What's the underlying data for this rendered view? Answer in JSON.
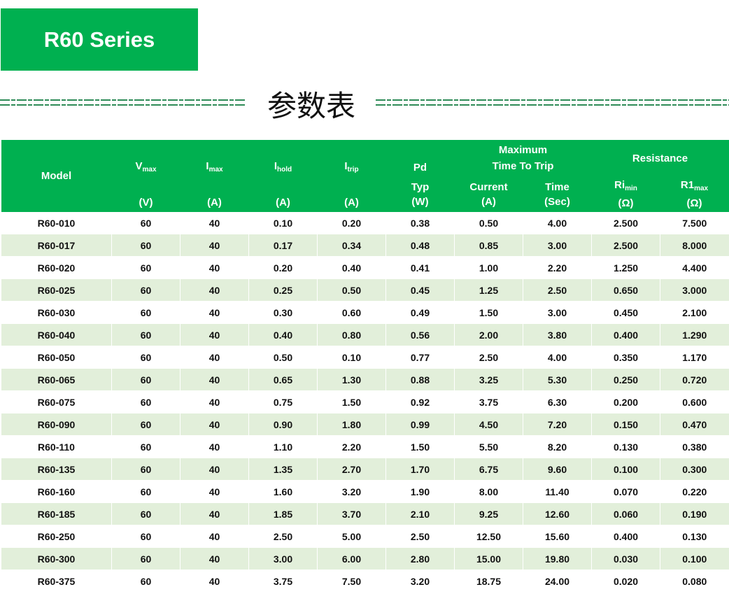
{
  "banner": {
    "title": "R60 Series"
  },
  "section_title": "参数表",
  "colors": {
    "accent": "#00b050",
    "alt_row": "#e2efda",
    "decor_line": "#2e8b57"
  },
  "table": {
    "headers": {
      "model": "Model",
      "vmax": {
        "main": "V",
        "sub": "max",
        "unit": "(V)"
      },
      "imax": {
        "main": "I",
        "sub": "max",
        "unit": "(A)"
      },
      "ihold": {
        "main": "I",
        "sub": "hold",
        "unit": "(A)"
      },
      "itrip": {
        "main": "I",
        "sub": "trip",
        "unit": "(A)"
      },
      "pd": {
        "main": "Pd",
        "typ": "Typ",
        "unit": "(W)"
      },
      "trip_group": {
        "line1": "Maximum",
        "line2": "Time To Trip"
      },
      "current": {
        "main": "Current",
        "unit": "(A)"
      },
      "time": {
        "main": "Time",
        "unit": "(Sec)"
      },
      "resistance": "Resistance",
      "rimin": {
        "main": "Ri",
        "sub": "min",
        "unit": "(Ω)"
      },
      "r1max": {
        "main": "R1",
        "sub": "max",
        "unit": "(Ω)"
      }
    },
    "rows": [
      [
        "R60-010",
        "60",
        "40",
        "0.10",
        "0.20",
        "0.38",
        "0.50",
        "4.00",
        "2.500",
        "7.500"
      ],
      [
        "R60-017",
        "60",
        "40",
        "0.17",
        "0.34",
        "0.48",
        "0.85",
        "3.00",
        "2.500",
        "8.000"
      ],
      [
        "R60-020",
        "60",
        "40",
        "0.20",
        "0.40",
        "0.41",
        "1.00",
        "2.20",
        "1.250",
        "4.400"
      ],
      [
        "R60-025",
        "60",
        "40",
        "0.25",
        "0.50",
        "0.45",
        "1.25",
        "2.50",
        "0.650",
        "3.000"
      ],
      [
        "R60-030",
        "60",
        "40",
        "0.30",
        "0.60",
        "0.49",
        "1.50",
        "3.00",
        "0.450",
        "2.100"
      ],
      [
        "R60-040",
        "60",
        "40",
        "0.40",
        "0.80",
        "0.56",
        "2.00",
        "3.80",
        "0.400",
        "1.290"
      ],
      [
        "R60-050",
        "60",
        "40",
        "0.50",
        "0.10",
        "0.77",
        "2.50",
        "4.00",
        "0.350",
        "1.170"
      ],
      [
        "R60-065",
        "60",
        "40",
        "0.65",
        "1.30",
        "0.88",
        "3.25",
        "5.30",
        "0.250",
        "0.720"
      ],
      [
        "R60-075",
        "60",
        "40",
        "0.75",
        "1.50",
        "0.92",
        "3.75",
        "6.30",
        "0.200",
        "0.600"
      ],
      [
        "R60-090",
        "60",
        "40",
        "0.90",
        "1.80",
        "0.99",
        "4.50",
        "7.20",
        "0.150",
        "0.470"
      ],
      [
        "R60-110",
        "60",
        "40",
        "1.10",
        "2.20",
        "1.50",
        "5.50",
        "8.20",
        "0.130",
        "0.380"
      ],
      [
        "R60-135",
        "60",
        "40",
        "1.35",
        "2.70",
        "1.70",
        "6.75",
        "9.60",
        "0.100",
        "0.300"
      ],
      [
        "R60-160",
        "60",
        "40",
        "1.60",
        "3.20",
        "1.90",
        "8.00",
        "11.40",
        "0.070",
        "0.220"
      ],
      [
        "R60-185",
        "60",
        "40",
        "1.85",
        "3.70",
        "2.10",
        "9.25",
        "12.60",
        "0.060",
        "0.190"
      ],
      [
        "R60-250",
        "60",
        "40",
        "2.50",
        "5.00",
        "2.50",
        "12.50",
        "15.60",
        "0.400",
        "0.130"
      ],
      [
        "R60-300",
        "60",
        "40",
        "3.00",
        "6.00",
        "2.80",
        "15.00",
        "19.80",
        "0.030",
        "0.100"
      ],
      [
        "R60-375",
        "60",
        "40",
        "3.75",
        "7.50",
        "3.20",
        "18.75",
        "24.00",
        "0.020",
        "0.080"
      ]
    ]
  }
}
